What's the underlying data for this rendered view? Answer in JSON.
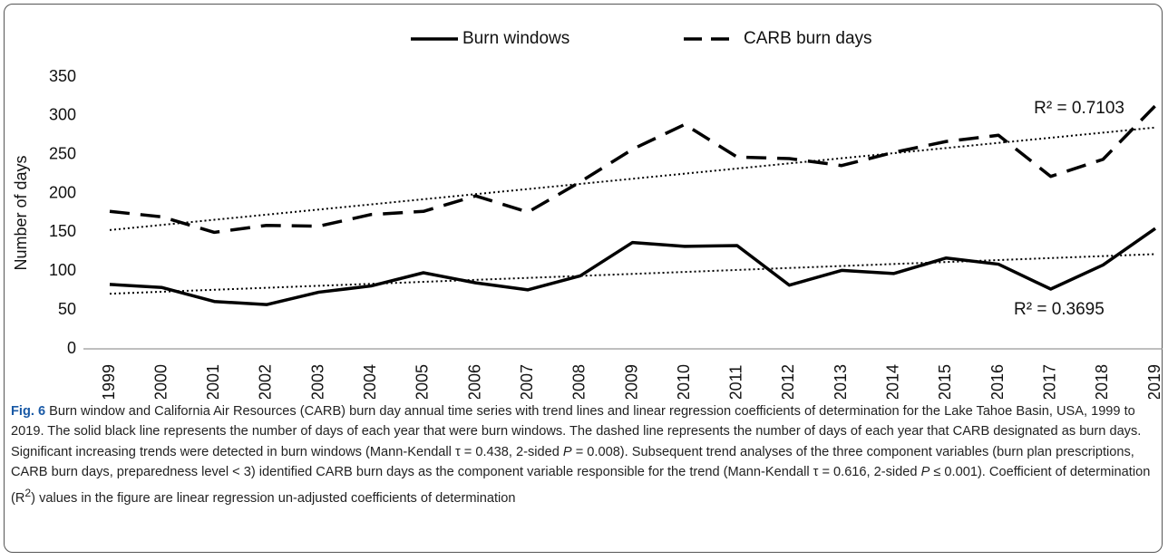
{
  "chart_data": {
    "type": "line",
    "categories": [
      "1999",
      "2000",
      "2001",
      "2002",
      "2003",
      "2004",
      "2005",
      "2006",
      "2007",
      "2008",
      "2009",
      "2010",
      "2011",
      "2012",
      "2013",
      "2014",
      "2015",
      "2016",
      "2017",
      "2018",
      "2019"
    ],
    "series": [
      {
        "name": "Burn windows",
        "color": "#000000",
        "dash": "solid",
        "values": [
          83,
          79,
          61,
          57,
          73,
          81,
          98,
          85,
          76,
          94,
          137,
          132,
          133,
          82,
          101,
          97,
          117,
          109,
          77,
          108,
          155
        ]
      },
      {
        "name": "CARB burn days",
        "color": "#000000",
        "dash": "dashed",
        "values": [
          177,
          170,
          150,
          159,
          158,
          173,
          177,
          197,
          176,
          215,
          257,
          289,
          247,
          245,
          236,
          253,
          267,
          275,
          222,
          244,
          313
        ]
      }
    ],
    "trendlines": [
      {
        "values": [
          71,
          122
        ],
        "annotation": "R² = 0.3695"
      },
      {
        "values": [
          153,
          285
        ],
        "annotation": "R² = 0.7103"
      }
    ],
    "ylabel": "Number of days",
    "ylim": [
      0,
      350
    ],
    "yticks": [
      0,
      50,
      100,
      150,
      200,
      250,
      300,
      350
    ],
    "legend": "top"
  },
  "caption": {
    "label": "Fig. 6",
    "runs": [
      " Burn window and California Air Resources (CARB) burn day annual time series with trend lines and linear regression coefficients of determination for the Lake Tahoe Basin, USA, 1999 to 2019. The solid black line represents the number of days of each year that were burn windows. The dashed line represents the number of days of each year that CARB designated as burn days. Significant increasing trends were detected in burn windows (Mann-Kendall τ = 0.438, 2-sided ",
      "P",
      " = 0.008). Subsequent trend analyses of the three component variables (burn plan prescriptions, CARB burn days, preparedness level < 3) identified CARB burn days as the component variable responsible for the trend (Mann-Kendall τ = 0.616, 2-sided ",
      "P",
      " ≤ 0.001). Coefficient of determination (R",
      "2",
      ") values in the figure are linear regression un-adjusted coefficients of determination"
    ]
  }
}
